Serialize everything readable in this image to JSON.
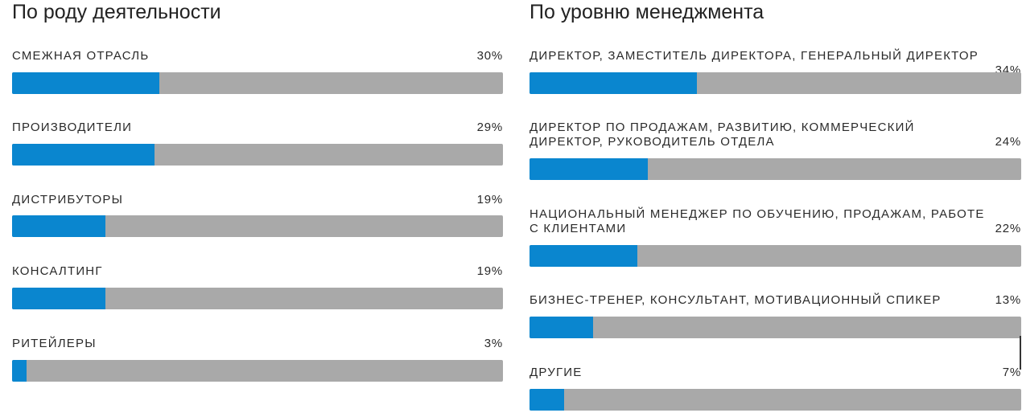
{
  "colors": {
    "fill": "#0a86cf",
    "track": "#a9a9a9"
  },
  "chart_data": [
    {
      "type": "bar",
      "orientation": "horizontal",
      "title": "По роду деятельности",
      "categories": [
        "СМЕЖНАЯ ОТРАСЛЬ",
        "ПРОИЗВОДИТЕЛИ",
        "ДИСТРИБУТОРЫ",
        "КОНСАЛТИНГ",
        "РИТЕЙЛЕРЫ"
      ],
      "values": [
        30,
        29,
        19,
        19,
        3
      ],
      "labels": [
        "30%",
        "29%",
        "19%",
        "19%",
        "3%"
      ],
      "xlim": [
        0,
        100
      ]
    },
    {
      "type": "bar",
      "orientation": "horizontal",
      "title": "По уровню менеджмента",
      "categories": [
        "ДИРЕКТОР, ЗАМЕСТИТЕЛЬ ДИРЕКТОРА, ГЕНЕРАЛЬНЫЙ ДИРЕКТОР",
        "ДИРЕКТОР ПО ПРОДАЖАМ, РАЗВИТИЮ, КОММЕРЧЕСКИЙ ДИРЕКТОР, РУКОВОДИТЕЛЬ ОТДЕЛА",
        "НАЦИОНАЛЬНЫЙ МЕНЕДЖЕР ПО ОБУЧЕНИЮ, ПРОДАЖАМ, РАБОТЕ С КЛИЕНТАМИ",
        "БИЗНЕС-ТРЕНЕР, КОНСУЛЬТАНТ, МОТИВАЦИОННЫЙ СПИКЕР",
        "ДРУГИЕ"
      ],
      "values": [
        34,
        24,
        22,
        13,
        7
      ],
      "labels": [
        "34%",
        "24%",
        "22%",
        "13%",
        "7%"
      ],
      "xlim": [
        0,
        100
      ]
    }
  ]
}
